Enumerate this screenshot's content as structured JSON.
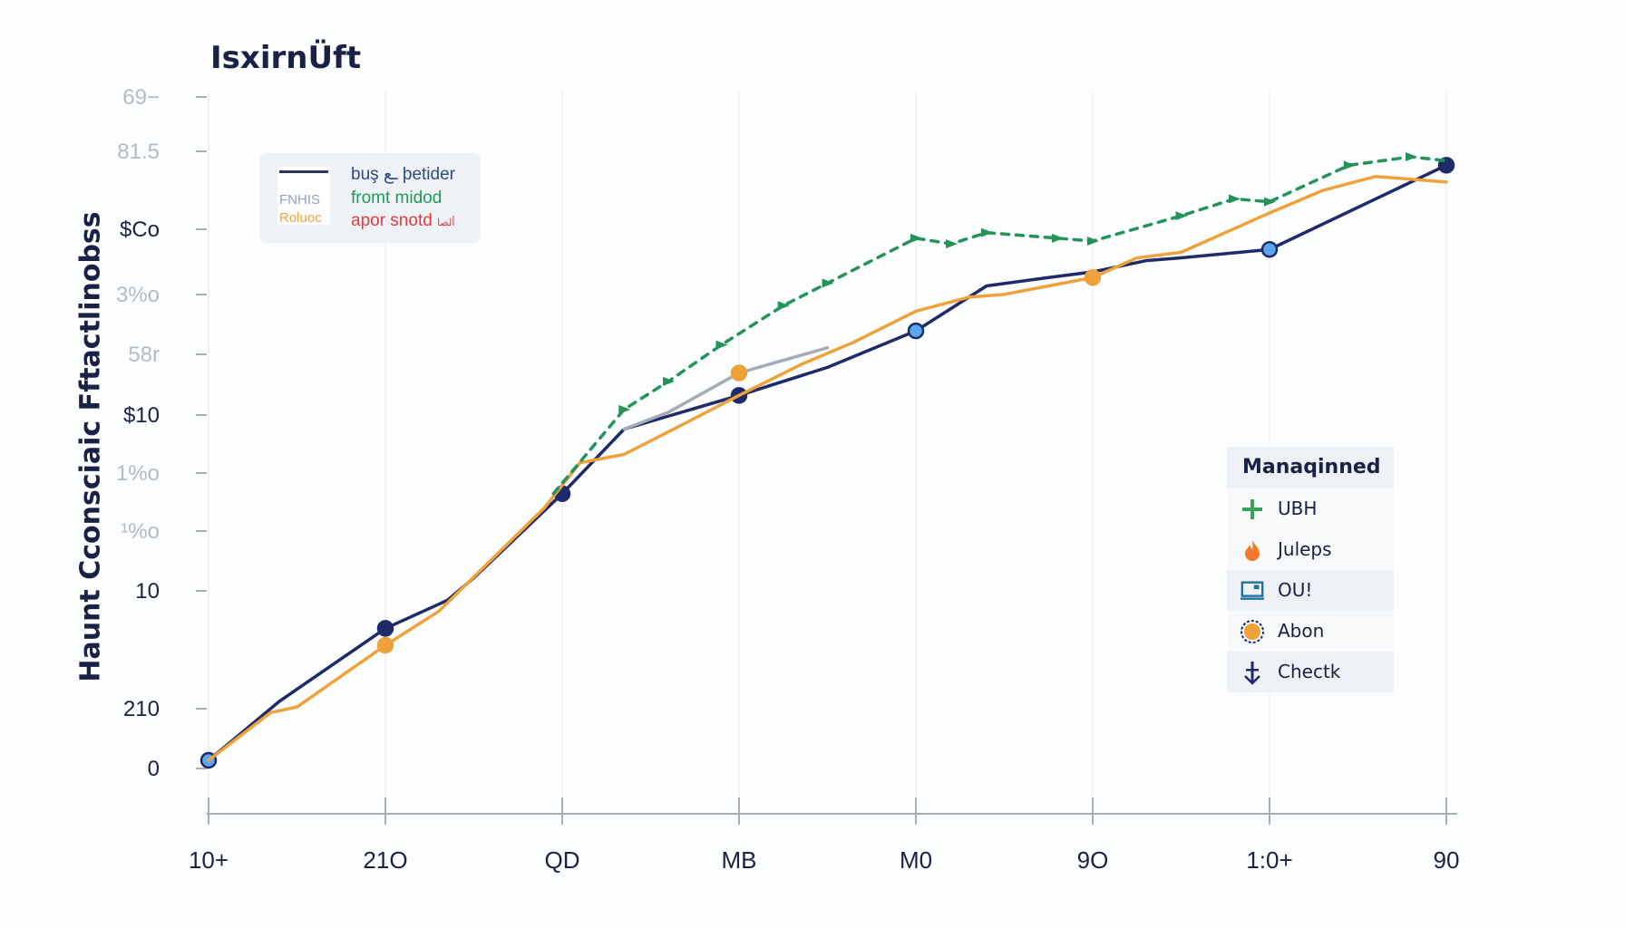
{
  "chart_data": {
    "type": "line",
    "title": "IsxirnÜft",
    "ylabel": "Haunt Cconsciaic Fftactlinobss",
    "xlabel": "",
    "x_ticks": [
      "10+",
      "21O",
      "QD",
      "MB",
      "M0",
      "9O",
      "1:0+",
      "90"
    ],
    "y_ticks": [
      "0",
      "210",
      "10",
      "¹%o",
      "1%o",
      "$10",
      "58r",
      "3%o",
      "$Co",
      "81.5",
      "69−"
    ],
    "grid": "vertical",
    "series": [
      {
        "color": "#1f2a6b",
        "style": "solid",
        "x": [
          0,
          0.4,
          1,
          1.35,
          1.5,
          2,
          2.35,
          3,
          3.5,
          4,
          4.4,
          4.75,
          5,
          5.3,
          5.5,
          6,
          7
        ],
        "y": [
          0,
          105,
          235,
          285,
          325,
          475,
          590,
          650,
          700,
          765,
          845,
          860,
          870,
          890,
          895,
          910,
          1060
        ],
        "markers": [
          {
            "x": 0,
            "fill": "#5aa7ef",
            "stroke": "#1f2a6b"
          },
          {
            "x": 1,
            "fill": "#1f2a6b",
            "stroke": "#1f2a6b"
          },
          {
            "x": 2,
            "fill": "#1f2a6b",
            "stroke": "#1f2a6b"
          },
          {
            "x": 3,
            "fill": "#1f2a6b",
            "stroke": "#1f2a6b"
          },
          {
            "x": 4,
            "fill": "#5aa7ef",
            "stroke": "#1f2a6b"
          },
          {
            "x": 6,
            "fill": "#5aa7ef",
            "stroke": "#1f2a6b"
          },
          {
            "x": 7,
            "fill": "#1f2a6b",
            "stroke": "#1f2a6b"
          }
        ]
      },
      {
        "color": "#f0a23a",
        "style": "solid",
        "x": [
          0,
          0.35,
          0.5,
          1,
          1.3,
          1.9,
          2.1,
          2.35,
          2.6,
          3,
          3.35,
          3.65,
          4,
          4.3,
          4.5,
          5,
          5.25,
          5.5,
          6,
          6.3,
          6.6,
          7
        ],
        "y": [
          0,
          85,
          95,
          205,
          265,
          450,
          530,
          545,
          585,
          650,
          705,
          745,
          800,
          825,
          830,
          860,
          895,
          905,
          975,
          1015,
          1040,
          1030
        ],
        "markers": [
          {
            "x": 1,
            "fill": "#f0a23a",
            "stroke": "#f0a23a"
          },
          {
            "x": 5,
            "fill": "#f0a23a",
            "stroke": "#f0a23a"
          }
        ]
      },
      {
        "color": "#a6abb8",
        "style": "solid",
        "x": [
          2.35,
          2.6,
          3,
          3.5
        ],
        "y": [
          590,
          620,
          690,
          735
        ],
        "markers": [
          {
            "x": 3,
            "fill": "#f0a23a",
            "stroke": "#f0a23a"
          }
        ]
      },
      {
        "color": "#23935a",
        "style": "dashed",
        "x": [
          1.95,
          2.35,
          2.6,
          2.9,
          3.25,
          3.5,
          4,
          4.2,
          4.4,
          4.8,
          5,
          5.5,
          5.8,
          6,
          6.45,
          6.8,
          7
        ],
        "y": [
          475,
          625,
          675,
          740,
          810,
          850,
          930,
          920,
          940,
          930,
          925,
          970,
          1000,
          995,
          1060,
          1075,
          1068
        ]
      }
    ]
  },
  "inset": {
    "thumb_line2": "FNHIS",
    "thumb_line3": "Roluoc",
    "line1": "buş ـع þetider",
    "line2": "fromt midod",
    "line3_main": "apor snotd",
    "line3_small": "ألصا"
  },
  "legend": {
    "title": "Manaqinned",
    "items": [
      {
        "label": "UBH",
        "icon": "plus-icon",
        "color": "#37a35a"
      },
      {
        "label": "Juleps",
        "icon": "flame-icon",
        "color": "#f07a2a"
      },
      {
        "label": "OU!",
        "icon": "monitor-icon",
        "color": "#1d6fa0"
      },
      {
        "label": "Abon",
        "icon": "target-icon",
        "color": "#f0a23a"
      },
      {
        "label": "Chectk",
        "icon": "anchor-icon",
        "color": "#1f2a6b"
      }
    ]
  }
}
